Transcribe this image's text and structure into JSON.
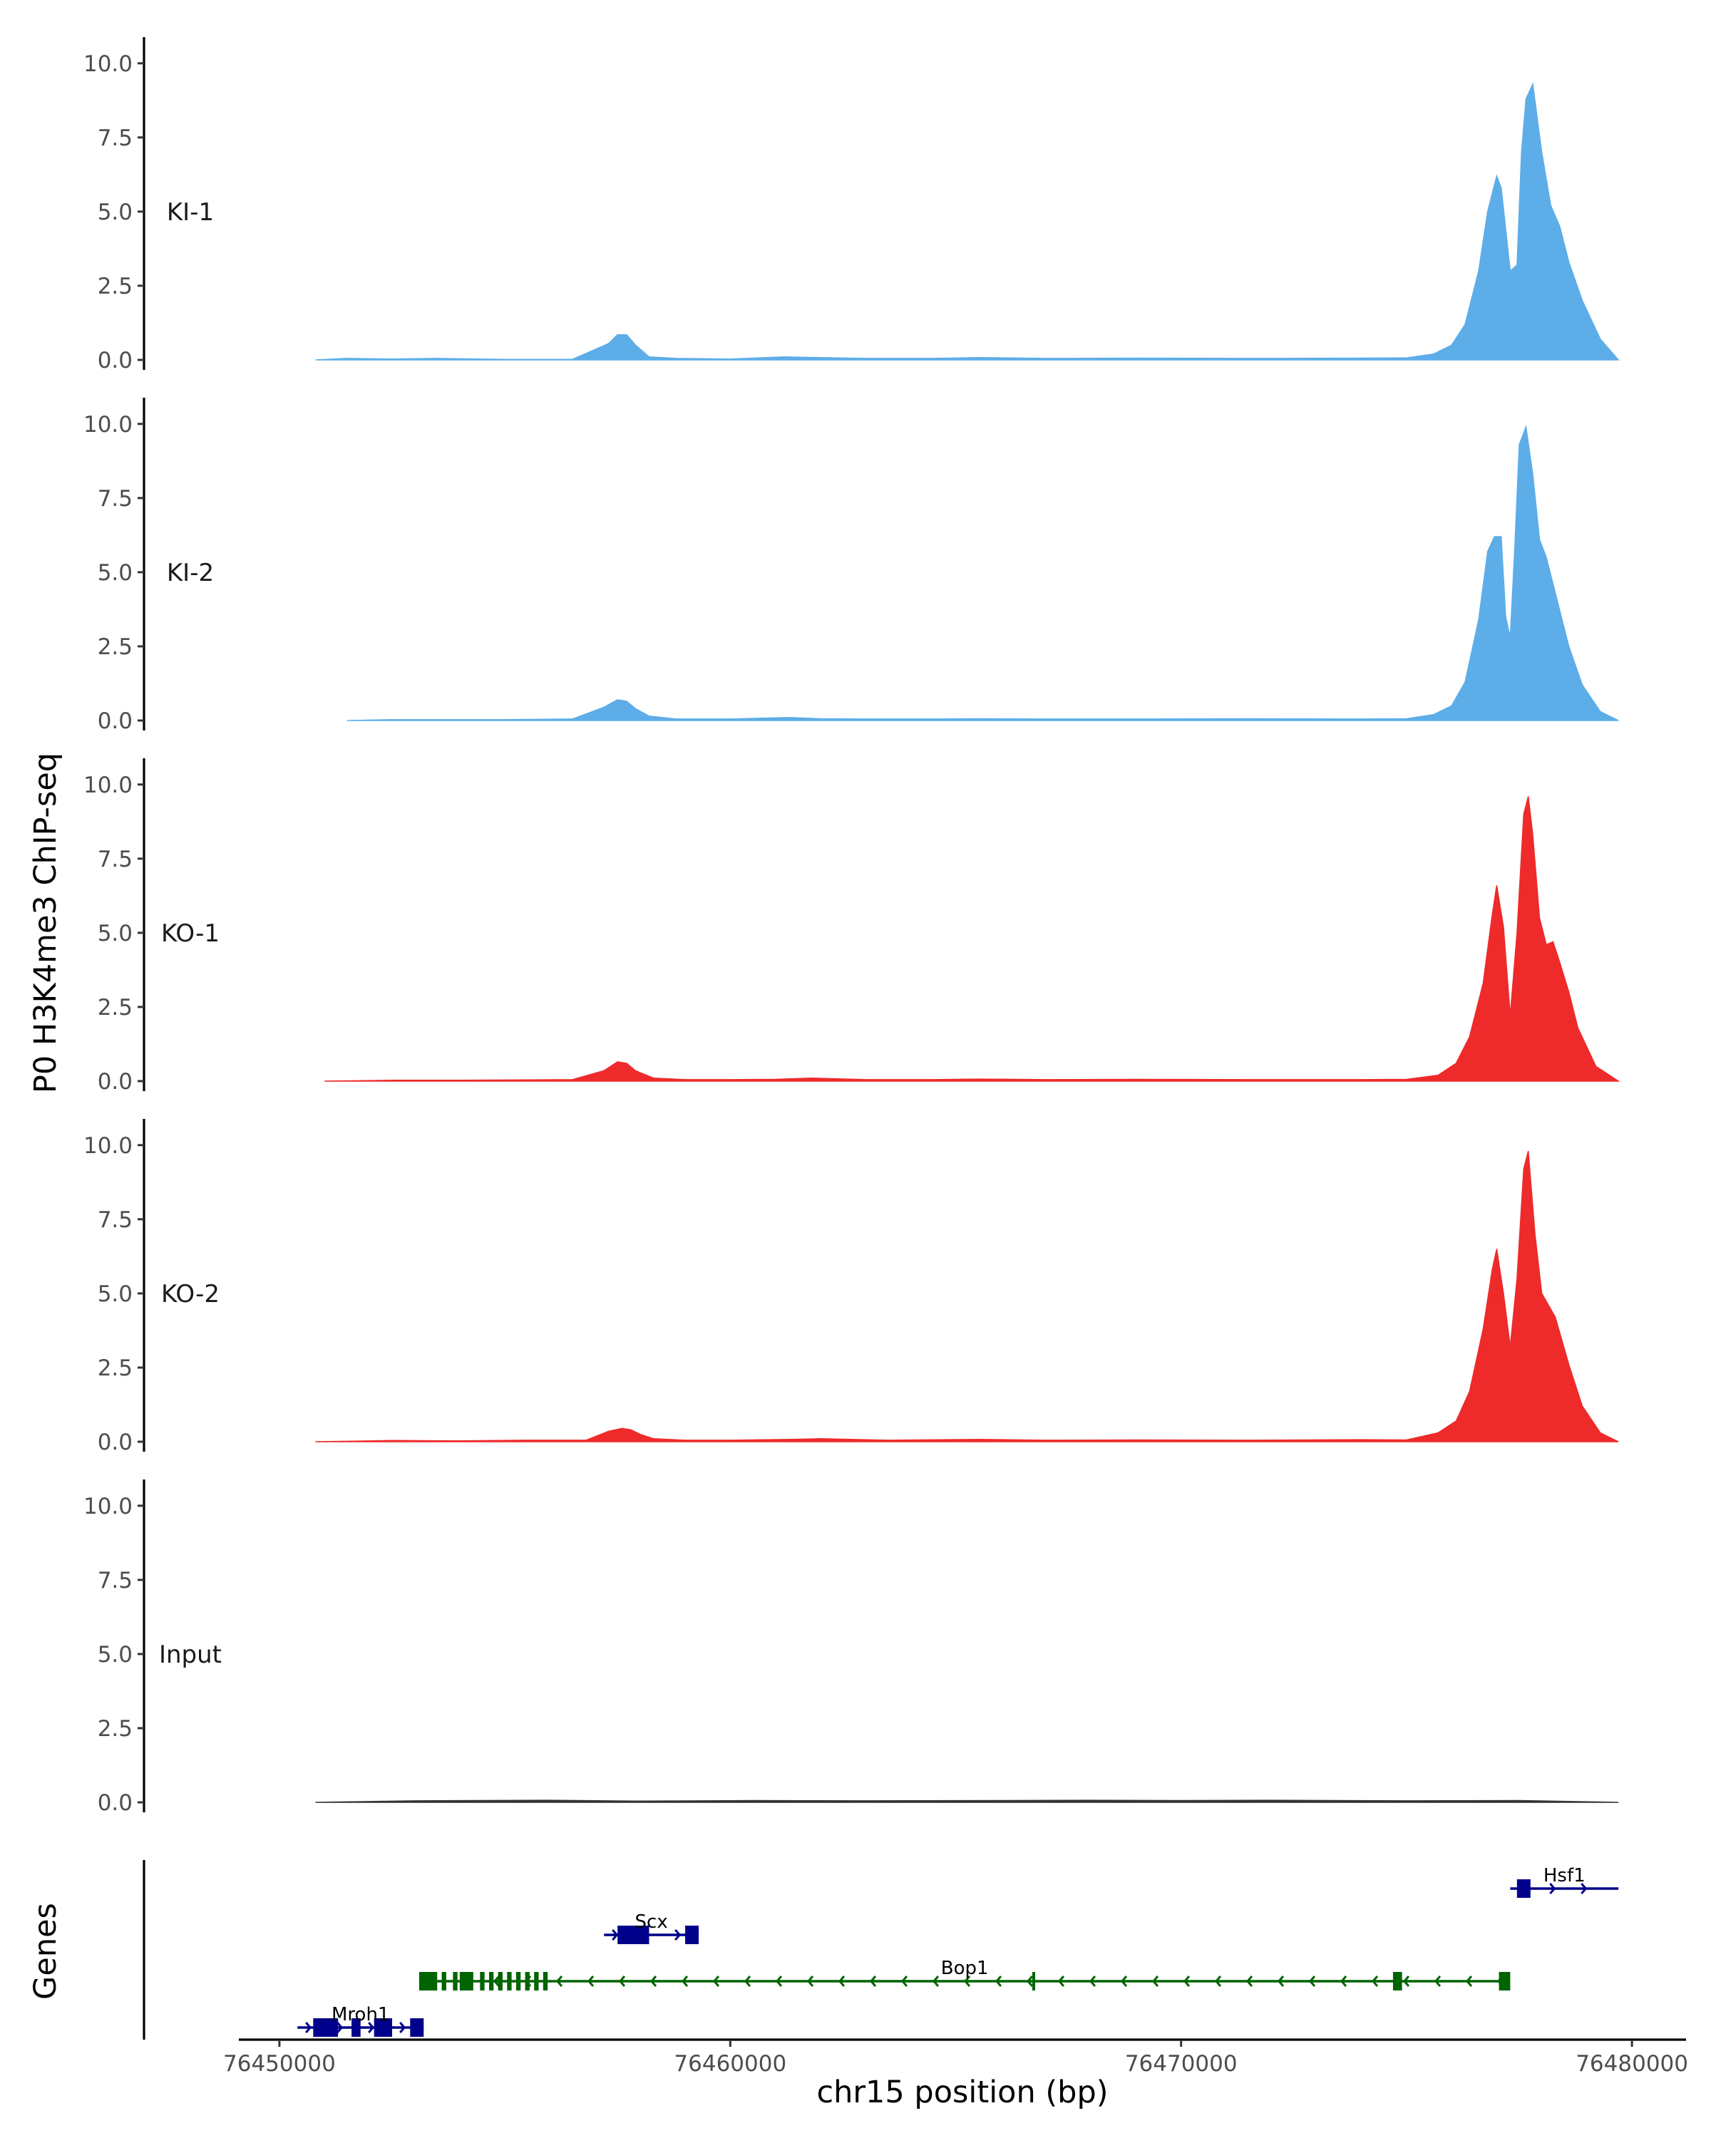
{
  "chart_data": {
    "type": "area",
    "ylabel": "P0 H3K4me3 ChIP-seq",
    "xlabel": "chr15 position (bp)",
    "genes_label": "Genes",
    "xlim": [
      76449100,
      76481200
    ],
    "ylim": [
      0,
      10.5
    ],
    "x_ticks": [
      76450000,
      76460000,
      76470000,
      76480000
    ],
    "x_tick_labels": [
      "76450000",
      "76460000",
      "76470000",
      "76480000"
    ],
    "y_ticks": [
      0,
      2.5,
      5,
      7.5,
      10
    ],
    "y_tick_labels": [
      "0.0",
      "2.5",
      "5.0",
      "7.5",
      "10.0"
    ],
    "colors": {
      "KI": "#5dade8",
      "KO": "#ee2a2a",
      "Input": "#333333",
      "plus_strand_gene": "#00008b",
      "minus_strand_gene": "#006400"
    },
    "tracks": [
      {
        "name": "KI-1",
        "color": "#5dade8",
        "x": [
          76450800,
          76451500,
          76452500,
          76453500,
          76455000,
          76456500,
          76457300,
          76457500,
          76457700,
          76457900,
          76458200,
          76458800,
          76460000,
          76461200,
          76462000,
          76463000,
          76464500,
          76465500,
          76467000,
          76469000,
          76471500,
          76474000,
          76475000,
          76475600,
          76476000,
          76476300,
          76476600,
          76476800,
          76477000,
          76477100,
          76477300,
          76477450,
          76477550,
          76477650,
          76477800,
          76478000,
          76478200,
          76478400,
          76478600,
          76478900,
          76479300,
          76479700
        ],
        "y": [
          0.0,
          0.05,
          0.03,
          0.05,
          0.02,
          0.02,
          0.55,
          0.85,
          0.85,
          0.5,
          0.1,
          0.05,
          0.03,
          0.1,
          0.08,
          0.05,
          0.05,
          0.08,
          0.05,
          0.06,
          0.05,
          0.06,
          0.07,
          0.2,
          0.5,
          1.2,
          3.0,
          5.0,
          6.2,
          5.8,
          3.0,
          3.2,
          7.0,
          8.8,
          9.3,
          7.0,
          5.2,
          4.5,
          3.3,
          2.0,
          0.7,
          0.0
        ]
      },
      {
        "name": "KI-2",
        "color": "#5dade8",
        "x": [
          76451500,
          76452500,
          76453500,
          76455000,
          76456500,
          76457200,
          76457500,
          76457700,
          76457900,
          76458200,
          76458800,
          76460000,
          76461300,
          76462000,
          76463000,
          76464500,
          76465500,
          76467000,
          76469000,
          76471500,
          76474000,
          76475000,
          76475600,
          76476000,
          76476300,
          76476600,
          76476800,
          76476950,
          76477100,
          76477200,
          76477300,
          76477400,
          76477500,
          76477650,
          76477800,
          76477950,
          76478100,
          76478300,
          76478600,
          76478900,
          76479300,
          76479700
        ],
        "y": [
          0.0,
          0.03,
          0.03,
          0.03,
          0.05,
          0.45,
          0.7,
          0.65,
          0.4,
          0.15,
          0.05,
          0.05,
          0.1,
          0.06,
          0.05,
          0.05,
          0.06,
          0.05,
          0.05,
          0.06,
          0.05,
          0.06,
          0.2,
          0.5,
          1.3,
          3.4,
          5.7,
          6.2,
          6.2,
          3.5,
          2.8,
          5.8,
          9.3,
          9.9,
          8.3,
          6.1,
          5.5,
          4.3,
          2.5,
          1.2,
          0.3,
          0.0
        ]
      },
      {
        "name": "KO-1",
        "color": "#ee2a2a",
        "x": [
          76451000,
          76452500,
          76454000,
          76455500,
          76456500,
          76457200,
          76457500,
          76457700,
          76457900,
          76458300,
          76459000,
          76460000,
          76461000,
          76461800,
          76463000,
          76464500,
          76465500,
          76467000,
          76469000,
          76471500,
          76474000,
          76475000,
          76475700,
          76476100,
          76476400,
          76476700,
          76476900,
          76477000,
          76477150,
          76477300,
          76477450,
          76477600,
          76477700,
          76477800,
          76477950,
          76478100,
          76478250,
          76478400,
          76478600,
          76478800,
          76479200,
          76479700
        ],
        "y": [
          0.0,
          0.03,
          0.03,
          0.04,
          0.05,
          0.35,
          0.65,
          0.6,
          0.35,
          0.1,
          0.05,
          0.05,
          0.06,
          0.1,
          0.05,
          0.05,
          0.07,
          0.05,
          0.06,
          0.05,
          0.05,
          0.06,
          0.2,
          0.6,
          1.5,
          3.3,
          5.6,
          6.6,
          5.2,
          2.2,
          5.0,
          9.0,
          9.6,
          8.3,
          5.5,
          4.6,
          4.7,
          4.0,
          3.0,
          1.8,
          0.5,
          0.0
        ]
      },
      {
        "name": "KO-2",
        "color": "#ee2a2a",
        "x": [
          76450800,
          76452500,
          76454000,
          76455500,
          76456800,
          76457300,
          76457600,
          76457800,
          76458000,
          76458300,
          76459000,
          76460000,
          76461300,
          76462000,
          76463500,
          76465500,
          76467000,
          76469000,
          76471500,
          76474000,
          76475000,
          76475700,
          76476100,
          76476400,
          76476700,
          76476900,
          76477000,
          76477150,
          76477300,
          76477450,
          76477600,
          76477700,
          76477850,
          76478000,
          76478300,
          76478600,
          76478900,
          76479300,
          76479700
        ],
        "y": [
          0.0,
          0.04,
          0.03,
          0.05,
          0.05,
          0.35,
          0.45,
          0.4,
          0.25,
          0.1,
          0.05,
          0.05,
          0.08,
          0.1,
          0.05,
          0.08,
          0.05,
          0.06,
          0.05,
          0.07,
          0.06,
          0.3,
          0.7,
          1.7,
          3.8,
          5.8,
          6.5,
          5.0,
          3.2,
          5.5,
          9.2,
          9.8,
          7.0,
          5.0,
          4.2,
          2.6,
          1.2,
          0.3,
          0.0
        ]
      },
      {
        "name": "Input",
        "color": "#333333",
        "x": [
          76450800,
          76453000,
          76456000,
          76458000,
          76460500,
          76463000,
          76466000,
          76468000,
          76470000,
          76472000,
          76475000,
          76477500,
          76479700
        ],
        "y": [
          0.0,
          0.05,
          0.07,
          0.04,
          0.06,
          0.05,
          0.06,
          0.07,
          0.06,
          0.07,
          0.05,
          0.06,
          0.0
        ]
      }
    ],
    "genes": [
      {
        "name": "Hsf1",
        "strand": "+",
        "color": "#00008b",
        "row": 0,
        "start": 76477300,
        "end": 76479700,
        "exons": [
          [
            76477450,
            76477750
          ]
        ]
      },
      {
        "name": "Scx",
        "strand": "+",
        "color": "#00008b",
        "row": 1,
        "start": 76457200,
        "end": 76459300,
        "exons": [
          [
            76457500,
            76458200
          ],
          [
            76459000,
            76459300
          ]
        ]
      },
      {
        "name": "Bop1",
        "strand": "-",
        "color": "#006400",
        "row": 2,
        "start": 76453100,
        "end": 76477300,
        "exons": [
          [
            76453100,
            76453500
          ],
          [
            76453600,
            76453700
          ],
          [
            76453850,
            76453950
          ],
          [
            76454000,
            76454300
          ],
          [
            76454450,
            76454550
          ],
          [
            76454650,
            76454750
          ],
          [
            76454850,
            76454950
          ],
          [
            76455050,
            76455150
          ],
          [
            76455250,
            76455350
          ],
          [
            76455450,
            76455550
          ],
          [
            76455650,
            76455750
          ],
          [
            76455850,
            76455950
          ],
          [
            76466700,
            76466750
          ],
          [
            76474700,
            76474900
          ],
          [
            76477050,
            76477300
          ]
        ]
      },
      {
        "name": "Mroh1",
        "strand": "+",
        "color": "#00008b",
        "row": 3,
        "start": 76450400,
        "end": 76453200,
        "exons": [
          [
            76450750,
            76451300
          ],
          [
            76451600,
            76451800
          ],
          [
            76452100,
            76452500
          ],
          [
            76452900,
            76453200
          ]
        ]
      }
    ]
  }
}
